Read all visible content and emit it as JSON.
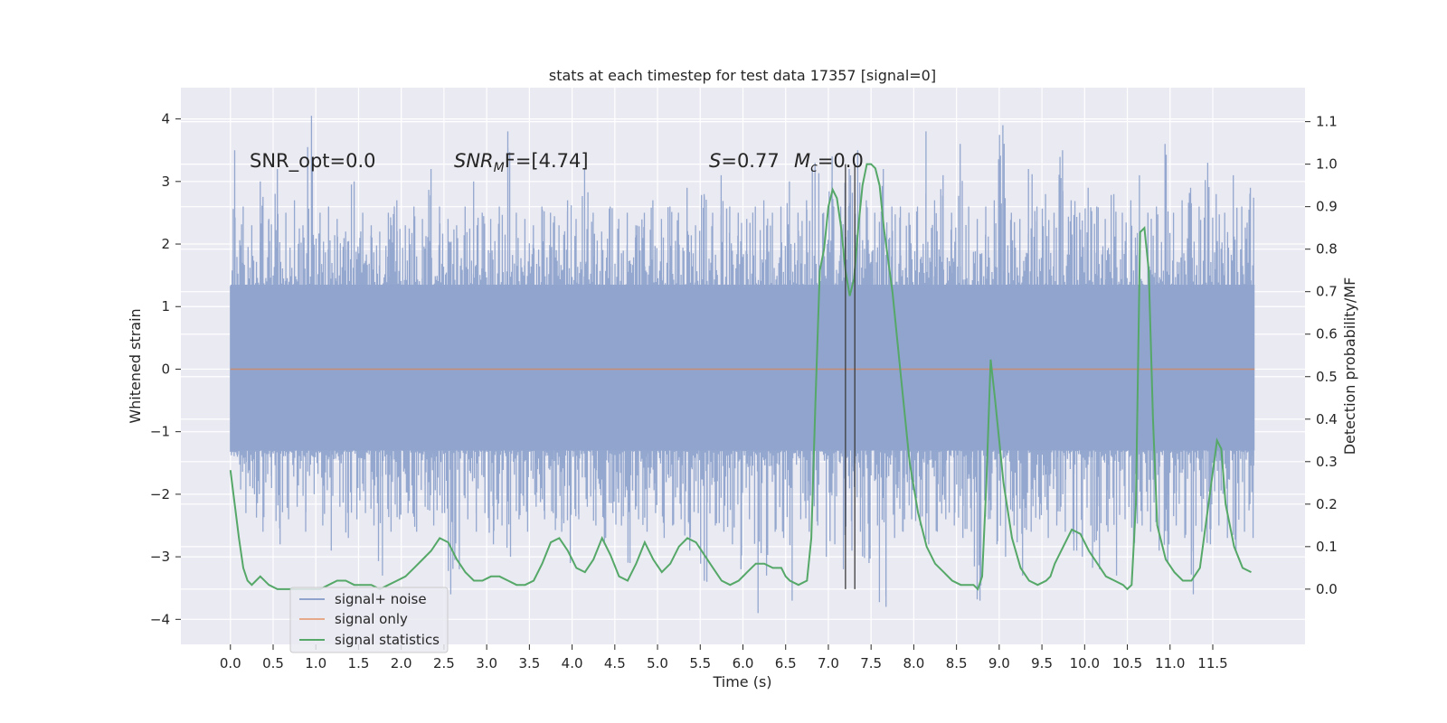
{
  "chart_data": {
    "type": "line",
    "title": "stats at each timestep for test data 17357 [signal=0]",
    "xlabel": "Time (s)",
    "ylabel": "Whitened strain",
    "ylabel_right": "Detection probability/MF",
    "xlim": [
      -0.58,
      12.58
    ],
    "ylim": [
      -4.4,
      4.5
    ],
    "ylim_right": [
      -0.13,
      1.18
    ],
    "x_ticks": [
      0.0,
      0.5,
      1.0,
      1.5,
      2.0,
      2.5,
      3.0,
      3.5,
      4.0,
      4.5,
      5.0,
      5.5,
      6.0,
      6.5,
      7.0,
      7.5,
      8.0,
      8.5,
      9.0,
      9.5,
      10.0,
      10.5,
      11.0,
      11.5
    ],
    "x_tick_labels": [
      "0.0",
      "0.5",
      "1.0",
      "1.5",
      "2.0",
      "2.5",
      "3.0",
      "3.5",
      "4.0",
      "4.5",
      "5.0",
      "5.5",
      "6.0",
      "6.5",
      "7.0",
      "7.5",
      "8.0",
      "8.5",
      "9.0",
      "9.5",
      "10.0",
      "10.5",
      "11.0",
      "11.5"
    ],
    "y_ticks": [
      -4,
      -3,
      -2,
      -1,
      0,
      1,
      2,
      3,
      4
    ],
    "y_tick_labels": [
      "−4",
      "−3",
      "−2",
      "−1",
      "0",
      "1",
      "2",
      "3",
      "4"
    ],
    "y_right_ticks": [
      0.0,
      0.1,
      0.2,
      0.3,
      0.4,
      0.5,
      0.6,
      0.7,
      0.8,
      0.9,
      1.0,
      1.1
    ],
    "y_right_tick_labels": [
      "0.0",
      "0.1",
      "0.2",
      "0.3",
      "0.4",
      "0.5",
      "0.6",
      "0.7",
      "0.8",
      "0.9",
      "1.0",
      "1.1"
    ],
    "legend": {
      "position": "lower-left",
      "entries": [
        "signal+ noise",
        "signal only",
        "signal statistics"
      ]
    },
    "annotations": {
      "snr_opt": "SNR_opt=0.0",
      "snr_mf_main": "SNR",
      "snr_mf_sub": "M",
      "snr_mf_rest": "F=[4.74]",
      "s_main": "S",
      "s_rest": "=0.77",
      "mc_main": "M",
      "mc_sub": "c",
      "mc_rest": "=0.0"
    },
    "vertical_lines_x": [
      7.2,
      7.31
    ],
    "series": [
      {
        "name": "signal+ noise",
        "color": "#8fa3cc",
        "t_range": [
          0.0,
          11.99
        ],
        "upper_envelope": [
          3.5,
          2.6,
          2.3,
          3.0,
          2.4,
          3.2,
          2.5,
          2.7,
          2.3,
          4.05,
          2.5,
          2.6,
          2.4,
          2.2,
          3.0,
          2.5,
          2.3,
          2.2,
          2.5,
          2.7,
          2.3,
          2.6,
          2.4,
          3.2,
          2.6,
          2.4,
          2.3,
          2.6,
          3.0,
          2.5,
          2.4,
          2.6,
          3.8,
          2.5,
          2.4,
          2.3,
          2.6,
          2.5,
          2.3,
          2.7,
          2.4,
          3.2,
          2.5,
          2.2,
          2.6,
          2.4,
          2.5,
          2.3,
          2.5,
          2.7,
          2.4,
          2.6,
          2.5,
          2.9,
          2.3,
          2.8,
          2.5,
          3.1,
          2.6,
          2.5,
          2.4,
          2.6,
          2.7,
          2.5,
          2.6,
          3.0,
          2.5,
          2.7,
          3.3,
          2.5,
          3.4,
          2.6,
          3.2,
          3.5,
          2.7,
          2.5,
          3.2,
          2.6,
          2.6,
          2.5,
          2.6,
          3.8,
          2.7,
          3.1,
          2.5,
          3.6,
          2.6,
          2.4,
          2.6,
          2.7,
          3.9,
          2.5,
          2.4,
          3.2,
          2.6,
          2.8,
          2.5,
          3.5,
          2.7,
          2.5,
          2.9,
          2.6,
          2.4,
          2.8,
          2.5,
          2.7,
          3.1,
          2.5,
          2.6,
          3.6,
          2.5,
          2.7,
          2.9,
          2.6,
          3.3,
          2.8,
          2.5,
          3.1,
          2.6,
          2.9
        ],
        "lower_envelope": [
          -1.4,
          -2.3,
          -2.0,
          -2.6,
          -1.9,
          -2.8,
          -2.4,
          -2.2,
          -2.6,
          -2.0,
          -2.5,
          -2.9,
          -2.2,
          -2.7,
          -2.4,
          -2.3,
          -2.5,
          -3.3,
          -2.6,
          -2.4,
          -2.3,
          -2.6,
          -2.2,
          -2.5,
          -2.3,
          -3.6,
          -3.2,
          -2.4,
          -2.6,
          -2.3,
          -2.8,
          -2.5,
          -3.0,
          -2.4,
          -2.6,
          -2.2,
          -2.4,
          -2.3,
          -2.6,
          -3.1,
          -2.4,
          -2.2,
          -2.5,
          -2.8,
          -2.3,
          -2.5,
          -3.1,
          -2.4,
          -2.6,
          -2.3,
          -2.7,
          -2.5,
          -2.4,
          -2.9,
          -2.3,
          -3.4,
          -2.5,
          -2.6,
          -2.8,
          -3.2,
          -2.4,
          -3.9,
          -3.3,
          -2.6,
          -2.7,
          -3.7,
          -2.4,
          -2.6,
          -2.5,
          -3.0,
          -2.8,
          -3.2,
          -2.9,
          -2.6,
          -3.1,
          -2.5,
          -3.8,
          -2.7,
          -2.6,
          -2.4,
          -2.5,
          -2.8,
          -2.6,
          -2.4,
          -2.5,
          -2.7,
          -2.6,
          -3.7,
          -2.4,
          -2.8,
          -3.0,
          -2.5,
          -3.3,
          -2.6,
          -2.4,
          -2.7,
          -2.5,
          -2.6,
          -2.9,
          -3.0,
          -2.5,
          -3.2,
          -2.6,
          -3.3,
          -2.4,
          -2.8,
          -2.5,
          -2.6,
          -2.9,
          -3.1,
          -2.5,
          -2.7,
          -3.6,
          -2.6,
          -2.8,
          -2.5,
          -2.7,
          -2.9,
          -2.6,
          -2.7
        ],
        "body_range": [
          -1.3,
          1.35
        ]
      },
      {
        "name": "signal only",
        "color": "#dd8452",
        "x": [
          0.0,
          11.99
        ],
        "values": [
          0.0,
          0.0
        ]
      },
      {
        "name": "signal statistics",
        "color": "#55a868",
        "x": [
          0.0,
          0.05,
          0.1,
          0.15,
          0.2,
          0.25,
          0.3,
          0.35,
          0.45,
          0.55,
          0.65,
          0.75,
          0.85,
          0.95,
          1.05,
          1.15,
          1.25,
          1.35,
          1.45,
          1.55,
          1.65,
          1.75,
          1.85,
          1.95,
          2.05,
          2.15,
          2.25,
          2.35,
          2.45,
          2.55,
          2.65,
          2.75,
          2.85,
          2.95,
          3.05,
          3.15,
          3.25,
          3.35,
          3.45,
          3.55,
          3.65,
          3.75,
          3.85,
          3.95,
          4.05,
          4.15,
          4.25,
          4.35,
          4.45,
          4.55,
          4.65,
          4.75,
          4.85,
          4.95,
          5.05,
          5.15,
          5.25,
          5.35,
          5.45,
          5.55,
          5.65,
          5.75,
          5.85,
          5.95,
          6.05,
          6.15,
          6.25,
          6.35,
          6.45,
          6.5,
          6.55,
          6.65,
          6.75,
          6.8,
          6.85,
          6.9,
          6.95,
          7.0,
          7.05,
          7.1,
          7.15,
          7.2,
          7.25,
          7.3,
          7.35,
          7.4,
          7.45,
          7.5,
          7.55,
          7.6,
          7.65,
          7.75,
          7.85,
          7.95,
          8.05,
          8.15,
          8.25,
          8.35,
          8.45,
          8.55,
          8.65,
          8.7,
          8.75,
          8.8,
          8.85,
          8.9,
          8.95,
          9.05,
          9.15,
          9.25,
          9.35,
          9.45,
          9.55,
          9.6,
          9.65,
          9.75,
          9.85,
          9.95,
          10.05,
          10.15,
          10.25,
          10.35,
          10.45,
          10.5,
          10.55,
          10.6,
          10.65,
          10.7,
          10.75,
          10.8,
          10.85,
          10.95,
          11.05,
          11.15,
          11.25,
          11.35,
          11.45,
          11.55,
          11.6,
          11.65,
          11.75,
          11.85,
          11.95
        ],
        "values": [
          0.28,
          0.2,
          0.12,
          0.05,
          0.02,
          0.01,
          0.02,
          0.03,
          0.01,
          0.0,
          0.0,
          0.0,
          0.0,
          0.0,
          0.0,
          0.01,
          0.02,
          0.02,
          0.01,
          0.01,
          0.01,
          0.0,
          0.01,
          0.02,
          0.03,
          0.05,
          0.07,
          0.09,
          0.12,
          0.11,
          0.07,
          0.04,
          0.02,
          0.02,
          0.03,
          0.03,
          0.02,
          0.01,
          0.01,
          0.02,
          0.06,
          0.11,
          0.12,
          0.09,
          0.05,
          0.04,
          0.07,
          0.12,
          0.08,
          0.03,
          0.02,
          0.06,
          0.11,
          0.07,
          0.04,
          0.06,
          0.1,
          0.12,
          0.11,
          0.08,
          0.05,
          0.02,
          0.01,
          0.02,
          0.04,
          0.06,
          0.06,
          0.05,
          0.05,
          0.03,
          0.02,
          0.01,
          0.02,
          0.12,
          0.45,
          0.75,
          0.8,
          0.9,
          0.94,
          0.92,
          0.85,
          0.75,
          0.69,
          0.73,
          0.85,
          0.95,
          1.0,
          1.0,
          0.99,
          0.95,
          0.85,
          0.7,
          0.5,
          0.3,
          0.18,
          0.1,
          0.06,
          0.04,
          0.02,
          0.01,
          0.01,
          0.01,
          0.0,
          0.03,
          0.25,
          0.54,
          0.45,
          0.25,
          0.12,
          0.05,
          0.02,
          0.01,
          0.02,
          0.03,
          0.06,
          0.1,
          0.14,
          0.13,
          0.09,
          0.06,
          0.03,
          0.02,
          0.01,
          0.0,
          0.01,
          0.2,
          0.84,
          0.85,
          0.75,
          0.4,
          0.15,
          0.07,
          0.04,
          0.02,
          0.02,
          0.05,
          0.2,
          0.35,
          0.33,
          0.2,
          0.1,
          0.05,
          0.04
        ]
      }
    ]
  }
}
